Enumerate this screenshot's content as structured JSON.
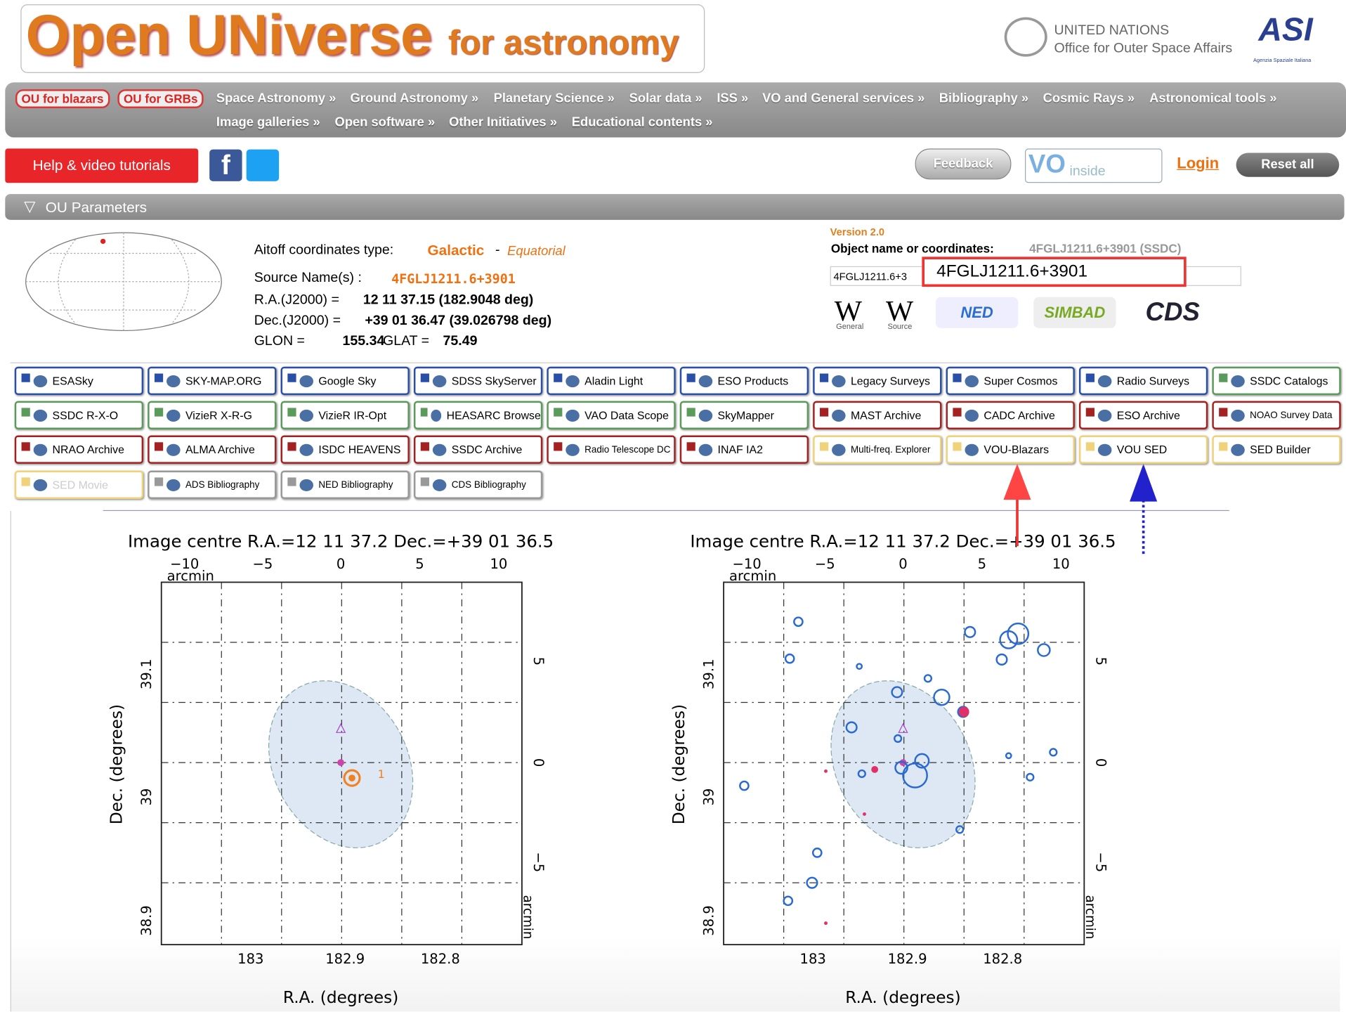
{
  "header": {
    "title": "Open UNiverse",
    "subtitle": "for astronomy",
    "un_line1": "UNITED NATIONS",
    "un_line2": "Office for Outer Space Affairs",
    "asi": "ASI",
    "asi_sub": "Agenzia Spaziale Italiana"
  },
  "nav": {
    "pills": [
      "OU for blazars",
      "OU for GRBs"
    ],
    "row1": [
      "Space Astronomy »",
      "Ground Astronomy »",
      "Planetary Science »",
      "Solar data »",
      "ISS »",
      "VO and General services »",
      "Bibliography »",
      "Cosmic Rays »",
      "Astronomical tools »"
    ],
    "row2": [
      "Image galleries »",
      "Open software »",
      "Other Initiatives »",
      "Educational contents »"
    ]
  },
  "toolbar": {
    "help": "Help & video tutorials",
    "feedback": "Feedback",
    "vo": "VO",
    "vo_inside": "inside",
    "login": "Login",
    "reset": "Reset all"
  },
  "section": "OU Parameters",
  "params": {
    "aitoff_label": "Aitoff coordinates type:",
    "galactic": "Galactic",
    "sep": "-",
    "equatorial": "Equatorial",
    "source_label": "Source Name(s) :",
    "source": "4FGLJ1211.6+3901",
    "ra_label": "R.A.(J2000) =",
    "ra": "12 11 37.15 (182.9048 deg)",
    "dec_label": "Dec.(J2000) =",
    "dec": "+39 01 36.47 (39.026798 deg)",
    "glon_label": "GLON =",
    "glon": "155.34",
    "glat_label": "GLAT =",
    "glat": "75.49"
  },
  "search": {
    "version": "Version 2.0",
    "object_label": "Object name or coordinates:",
    "object_value": "4FGLJ1211.6+3901 (SSDC)",
    "input": "4FGLJ1211.6+3",
    "highlight": "4FGLJ1211.6+3901",
    "logos": [
      "General",
      "Source",
      "NED",
      "SIMBAD",
      "CDS"
    ]
  },
  "buttons": [
    [
      {
        "name": "ESASky",
        "color": "blue"
      },
      {
        "name": "SKY-MAP.ORG",
        "color": "blue"
      },
      {
        "name": "Google Sky",
        "color": "blue"
      },
      {
        "name": "SDSS SkyServer",
        "color": "blue"
      },
      {
        "name": "Aladin Light",
        "color": "blue"
      },
      {
        "name": "ESO Products",
        "color": "blue"
      },
      {
        "name": "Legacy Surveys",
        "color": "blue"
      },
      {
        "name": "Super Cosmos",
        "color": "blue"
      },
      {
        "name": "Radio Surveys",
        "color": "blue"
      },
      {
        "name": "SSDC Catalogs",
        "color": "green"
      }
    ],
    [
      {
        "name": "SSDC R-X-O",
        "color": "green"
      },
      {
        "name": "VizieR X-R-G",
        "color": "green"
      },
      {
        "name": "VizieR IR-Opt",
        "color": "green"
      },
      {
        "name": "HEASARC Browse",
        "color": "green"
      },
      {
        "name": "VAO Data Scope",
        "color": "green"
      },
      {
        "name": "SkyMapper",
        "color": "green"
      },
      {
        "name": "MAST Archive",
        "color": "red"
      },
      {
        "name": "CADC Archive",
        "color": "red"
      },
      {
        "name": "ESO Archive",
        "color": "red"
      },
      {
        "name": "NOAO Survey Data",
        "color": "red"
      }
    ],
    [
      {
        "name": "NRAO Archive",
        "color": "red"
      },
      {
        "name": "ALMA Archive",
        "color": "red"
      },
      {
        "name": "ISDC HEAVENS",
        "color": "red"
      },
      {
        "name": "SSDC Archive",
        "color": "red"
      },
      {
        "name": "Radio Telescope DC",
        "color": "red"
      },
      {
        "name": "INAF IA2",
        "color": "red"
      },
      {
        "name": "Multi-freq. Explorer",
        "color": "yellow"
      },
      {
        "name": "VOU-Blazars",
        "color": "yellow"
      },
      {
        "name": "VOU SED",
        "color": "yellow"
      },
      {
        "name": "SED Builder",
        "color": "yellow"
      }
    ],
    [
      {
        "name": "SED Movie",
        "color": "yellow"
      },
      {
        "name": "ADS Bibliography",
        "color": "gray"
      },
      {
        "name": "NED Bibliography",
        "color": "gray"
      },
      {
        "name": "CDS Bibliography",
        "color": "gray"
      }
    ]
  ],
  "plots": [
    {
      "title": "Image centre R.A.=12 11 37.2 Dec.=+39 01 36.5",
      "top_ticks": [
        "−10",
        "−5",
        "0",
        "5",
        "10"
      ],
      "top_unit": "arcmin",
      "right_ticks": [
        "5",
        "0",
        "−5"
      ],
      "right_unit": "arcmin",
      "left_ticks": [
        "39.1",
        "39",
        "38.9"
      ],
      "y_label": "Dec. (degrees)",
      "bottom_ticks": [
        "183",
        "182.9",
        "182.8"
      ],
      "x_label": "R.A. (degrees)",
      "marker": "1"
    },
    {
      "title": "Image centre R.A.=12 11 37.2 Dec.=+39 01 36.5",
      "top_ticks": [
        "−10",
        "−5",
        "0",
        "5",
        "10"
      ],
      "top_unit": "arcmin",
      "right_ticks": [
        "5",
        "0",
        "−5"
      ],
      "right_unit": "arcmin",
      "left_ticks": [
        "39.1",
        "39",
        "38.9"
      ],
      "y_label": "Dec. (degrees)",
      "bottom_ticks": [
        "183",
        "182.9",
        "182.8"
      ],
      "x_label": "R.A. (degrees)"
    }
  ]
}
